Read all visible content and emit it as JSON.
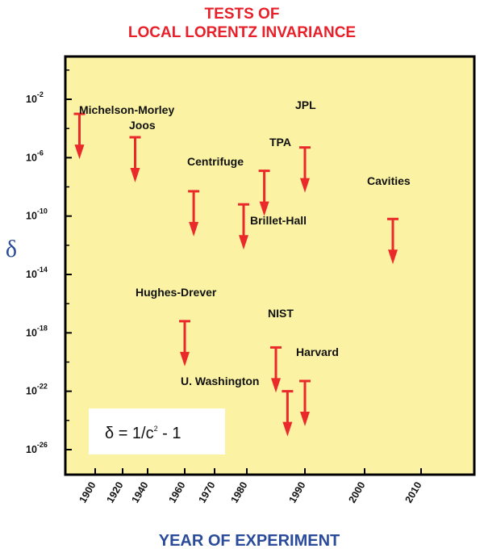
{
  "chart_data": {
    "type": "scatter",
    "title_line1": "TESTS OF",
    "title_line2": "LOCAL LORENTZ INVARIANCE",
    "ylabel": "δ",
    "xlabel": "YEAR OF EXPERIMENT",
    "y_scale": "log",
    "y_ticks": [
      {
        "base": "10",
        "exp": "-2",
        "value": -2
      },
      {
        "base": "10",
        "exp": "-6",
        "value": -6
      },
      {
        "base": "10",
        "exp": "-10",
        "value": -10
      },
      {
        "base": "10",
        "exp": "-14",
        "value": -14
      },
      {
        "base": "10",
        "exp": "-18",
        "value": -18
      },
      {
        "base": "10",
        "exp": "-22",
        "value": -22
      },
      {
        "base": "10",
        "exp": "-26",
        "value": -26
      }
    ],
    "x_ticks": [
      "1900",
      "1920",
      "1940",
      "1960",
      "1970",
      "1980",
      "1990",
      "2000",
      "2010"
    ],
    "formula": {
      "prefix": "δ = 1/c",
      "exp": "2",
      "suffix": " - 1"
    },
    "points": [
      {
        "name": "Michelson-Morley",
        "year": 1887,
        "log10_delta": -3.0
      },
      {
        "name": "Joos",
        "year": 1930,
        "log10_delta": -4.6
      },
      {
        "name": "Centrifuge",
        "year": 1963,
        "log10_delta": -8.3
      },
      {
        "name": "Brillet-Hall",
        "year": 1979,
        "log10_delta": -9.2
      },
      {
        "name": "TPA",
        "year": 1983,
        "log10_delta": -6.9
      },
      {
        "name": "JPL",
        "year": 1990,
        "log10_delta": -5.3
      },
      {
        "name": "Cavities",
        "year": 2005,
        "log10_delta": -10.2
      },
      {
        "name": "Hughes-Drever",
        "year": 1960,
        "log10_delta": -17.2
      },
      {
        "name": "NIST",
        "year": 1985,
        "log10_delta": -19.0
      },
      {
        "name": "U. Washington",
        "year": 1987,
        "log10_delta": -22.0
      },
      {
        "name": "Harvard",
        "year": 1990,
        "log10_delta": -21.3
      }
    ],
    "colors": {
      "background": "#fbf3a3",
      "arrow": "#ea2a2a",
      "title": "#e8202a",
      "axis_label": "#2a4a9a"
    }
  }
}
